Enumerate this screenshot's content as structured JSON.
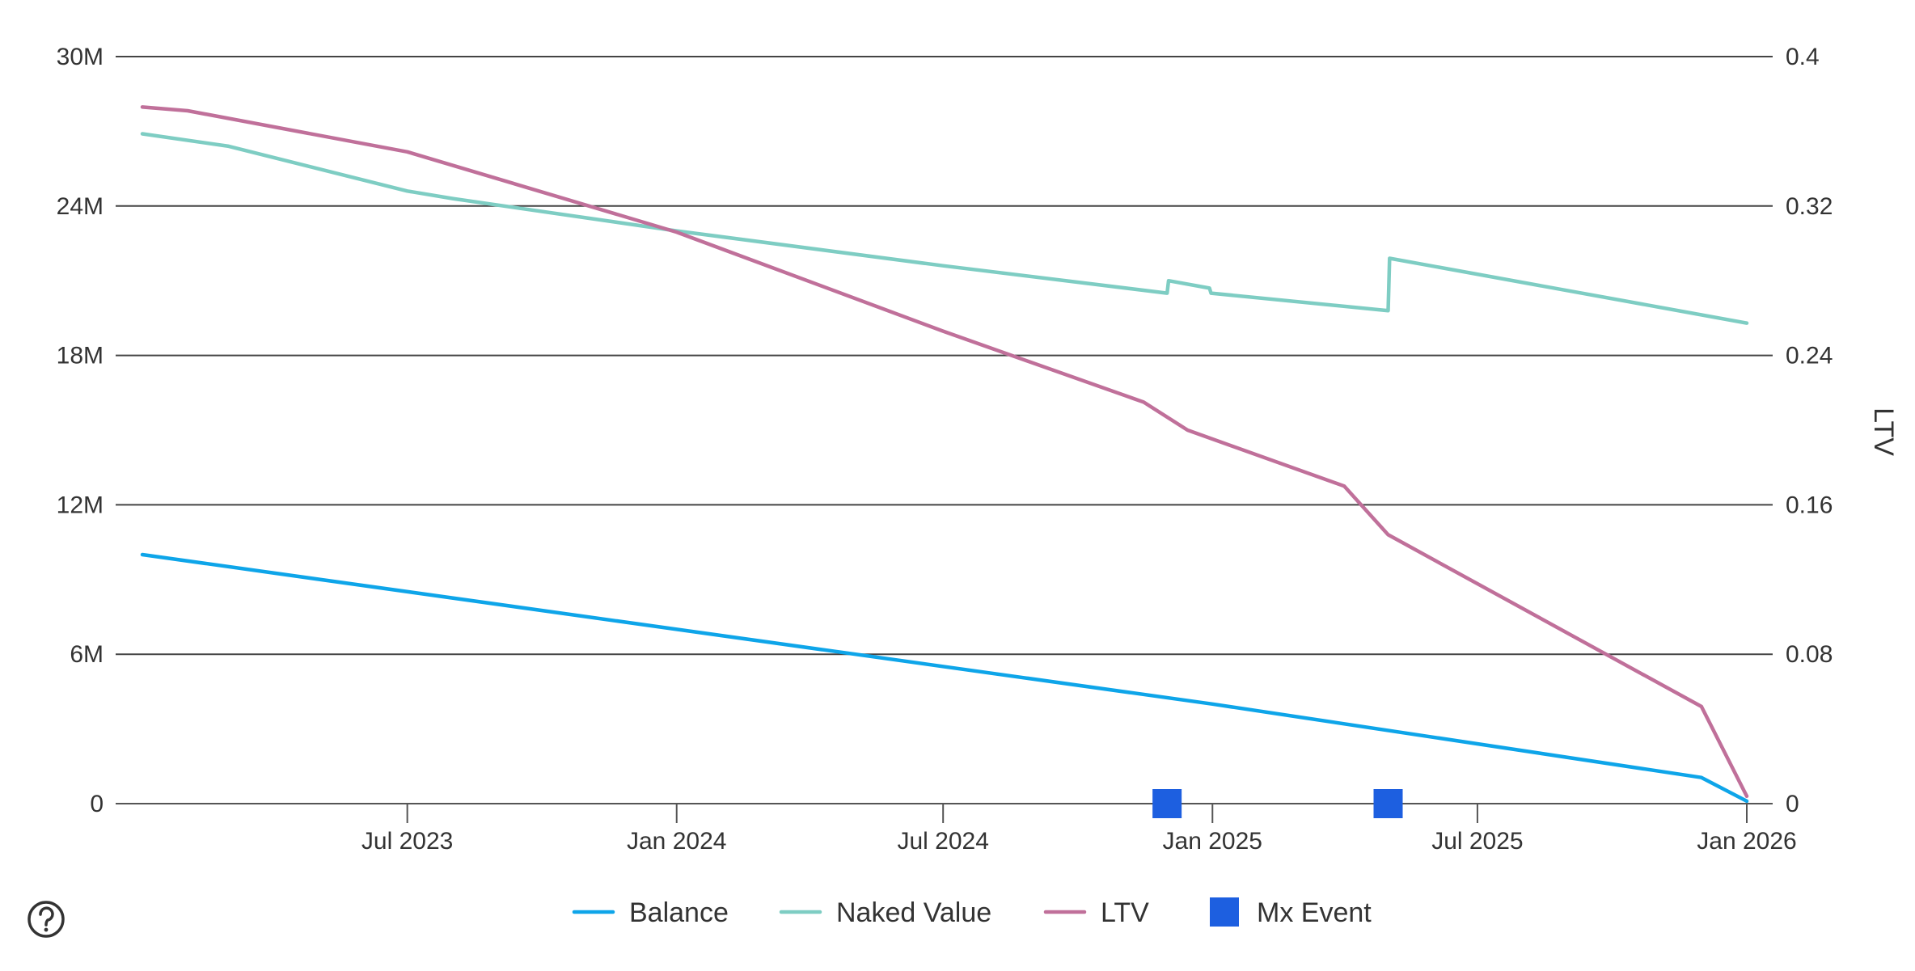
{
  "chart_data": {
    "type": "line",
    "x_axis": {
      "type": "date",
      "min": "2023-01-01",
      "max": "2026-01-01",
      "ticks": [
        {
          "date": "2023-07-01",
          "label": "Jul 2023"
        },
        {
          "date": "2024-01-01",
          "label": "Jan 2024"
        },
        {
          "date": "2024-07-01",
          "label": "Jul 2024"
        },
        {
          "date": "2025-01-01",
          "label": "Jan 2025"
        },
        {
          "date": "2025-07-01",
          "label": "Jul 2025"
        },
        {
          "date": "2026-01-01",
          "label": "Jan 2026"
        }
      ]
    },
    "y_axis_left": {
      "min": 0,
      "max": 30000000,
      "ticks": [
        0,
        6000000,
        12000000,
        18000000,
        24000000,
        30000000
      ],
      "tick_labels": [
        "0",
        "6M",
        "12M",
        "18M",
        "24M",
        "30M"
      ],
      "label": ""
    },
    "y_axis_right": {
      "min": 0,
      "max": 0.4,
      "ticks": [
        0,
        0.08,
        0.16,
        0.24,
        0.32,
        0.4
      ],
      "tick_labels": [
        "0",
        "0.08",
        "0.16",
        "0.24",
        "0.32",
        "0.4"
      ],
      "label": "LTV"
    },
    "grid": true,
    "legend_position": "bottom",
    "series": [
      {
        "name": "Balance",
        "axis": "left",
        "color": "#0ea5e9",
        "points": [
          [
            "2023-01-01",
            10000000
          ],
          [
            "2024-01-01",
            7000000
          ],
          [
            "2025-01-01",
            4000000
          ],
          [
            "2025-12-01",
            1050000
          ],
          [
            "2026-01-01",
            100000
          ]
        ]
      },
      {
        "name": "Naked Value",
        "axis": "left",
        "color": "#7ecdc3",
        "points": [
          [
            "2023-01-01",
            26900000
          ],
          [
            "2023-03-01",
            26400000
          ],
          [
            "2023-07-01",
            24600000
          ],
          [
            "2023-08-01",
            24300000
          ],
          [
            "2024-01-01",
            23000000
          ],
          [
            "2024-07-01",
            21600000
          ],
          [
            "2024-12-01",
            20500000
          ],
          [
            "2024-12-02",
            21000000
          ],
          [
            "2024-12-30",
            20700000
          ],
          [
            "2024-12-31",
            20500000
          ],
          [
            "2025-05-01",
            19800000
          ],
          [
            "2025-05-02",
            21900000
          ],
          [
            "2026-01-01",
            19300000
          ]
        ]
      },
      {
        "name": "LTV",
        "axis": "right",
        "color": "#c0709a",
        "points": [
          [
            "2023-01-01",
            0.373
          ],
          [
            "2023-02-01",
            0.371
          ],
          [
            "2023-07-01",
            0.349
          ],
          [
            "2024-01-01",
            0.306
          ],
          [
            "2024-07-01",
            0.253
          ],
          [
            "2024-11-15",
            0.215
          ],
          [
            "2024-12-15",
            0.2
          ],
          [
            "2025-04-01",
            0.17
          ],
          [
            "2025-05-01",
            0.144
          ],
          [
            "2025-12-01",
            0.052
          ],
          [
            "2026-01-01",
            0.004
          ]
        ]
      }
    ],
    "markers": {
      "name": "Mx Event",
      "color": "#1d5fe0",
      "dates": [
        "2024-12-01",
        "2025-05-01"
      ],
      "value": 0
    }
  },
  "help_icon": "question-circle-icon"
}
